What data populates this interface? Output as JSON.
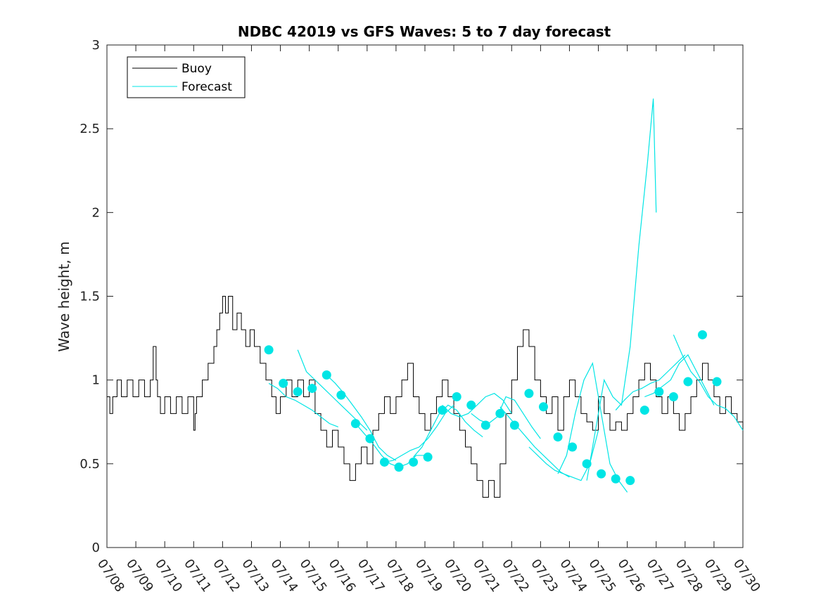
{
  "chart_data": {
    "type": "line",
    "title": "NDBC 42019 vs GFS Waves: 5 to 7 day forecast",
    "xlabel": "",
    "ylabel": "Wave height, m",
    "ylim": [
      0,
      3
    ],
    "yticks": [
      "0",
      "0.5",
      "1",
      "1.5",
      "2",
      "2.5",
      "3"
    ],
    "xticks": [
      "07/08",
      "07/09",
      "07/10",
      "07/11",
      "07/12",
      "07/13",
      "07/14",
      "07/15",
      "07/16",
      "07/17",
      "07/18",
      "07/19",
      "07/20",
      "07/21",
      "07/22",
      "07/23",
      "07/24",
      "07/25",
      "07/26",
      "07/27",
      "07/28",
      "07/29",
      "07/30"
    ],
    "grid": false,
    "legend_placement": "top-left",
    "colors": {
      "buoy": "#000000",
      "forecast": "#00e5e5"
    },
    "series": [
      {
        "name": "Buoy",
        "x": [
          0,
          0.1,
          0.2,
          0.35,
          0.5,
          0.7,
          0.9,
          1.1,
          1.3,
          1.5,
          1.6,
          1.7,
          1.75,
          1.85,
          2.0,
          2.2,
          2.4,
          2.6,
          2.8,
          3.0,
          3.05,
          3.1,
          3.3,
          3.5,
          3.7,
          3.8,
          3.9,
          4.0,
          4.1,
          4.2,
          4.35,
          4.5,
          4.65,
          4.8,
          4.95,
          5.1,
          5.3,
          5.5,
          5.7,
          5.85,
          6.0,
          6.2,
          6.4,
          6.6,
          6.8,
          7.0,
          7.2,
          7.4,
          7.6,
          7.8,
          8.0,
          8.2,
          8.4,
          8.6,
          8.8,
          9.0,
          9.2,
          9.4,
          9.6,
          9.8,
          10.0,
          10.2,
          10.4,
          10.6,
          10.8,
          11.0,
          11.2,
          11.4,
          11.6,
          11.8,
          12.0,
          12.2,
          12.4,
          12.6,
          12.8,
          13.0,
          13.2,
          13.4,
          13.6,
          13.8,
          14.0,
          14.2,
          14.4,
          14.6,
          14.8,
          15.0,
          15.2,
          15.4,
          15.6,
          15.8,
          16.0,
          16.2,
          16.4,
          16.6,
          16.8,
          17.0,
          17.2,
          17.4,
          17.6,
          17.8,
          18.0,
          18.2,
          18.4,
          18.6,
          18.8,
          19.0,
          19.2,
          19.4,
          19.6,
          19.8,
          20.0,
          20.2,
          20.4,
          20.6,
          20.8,
          21.0,
          21.2,
          21.4,
          21.6,
          21.8,
          22.0
        ],
        "values": [
          0.9,
          0.8,
          0.9,
          1.0,
          0.9,
          1.0,
          0.9,
          1.0,
          0.9,
          1.0,
          1.2,
          1.0,
          0.9,
          0.8,
          0.9,
          0.8,
          0.9,
          0.8,
          0.9,
          0.7,
          0.8,
          0.9,
          1.0,
          1.1,
          1.2,
          1.3,
          1.4,
          1.5,
          1.4,
          1.5,
          1.3,
          1.4,
          1.3,
          1.2,
          1.3,
          1.2,
          1.1,
          1.0,
          0.9,
          0.8,
          0.9,
          1.0,
          0.9,
          1.0,
          0.9,
          1.0,
          0.8,
          0.7,
          0.6,
          0.7,
          0.6,
          0.5,
          0.4,
          0.5,
          0.6,
          0.5,
          0.7,
          0.8,
          0.9,
          0.8,
          0.9,
          1.0,
          1.1,
          0.9,
          0.8,
          0.7,
          0.8,
          0.9,
          1.0,
          0.9,
          0.8,
          0.7,
          0.6,
          0.5,
          0.4,
          0.3,
          0.4,
          0.3,
          0.5,
          0.8,
          1.0,
          1.2,
          1.3,
          1.2,
          1.0,
          0.9,
          0.8,
          0.9,
          0.7,
          0.9,
          1.0,
          0.9,
          0.8,
          0.75,
          0.7,
          0.9,
          0.8,
          0.7,
          0.75,
          0.7,
          0.8,
          0.9,
          1.0,
          1.1,
          1.0,
          0.9,
          0.8,
          0.9,
          0.8,
          0.7,
          0.8,
          0.9,
          1.0,
          1.1,
          1.0,
          0.9,
          0.8,
          0.9,
          0.8,
          0.75,
          0.7
        ]
      },
      {
        "name": "Forecast",
        "runs": [
          {
            "x": [
              5.6,
              5.9,
              6.2,
              6.5,
              6.8,
              7.1,
              7.4,
              7.7,
              8.0
            ],
            "values": [
              0.98,
              0.95,
              0.9,
              0.88,
              0.85,
              0.82,
              0.78,
              0.74,
              0.72
            ]
          },
          {
            "x": [
              6.6,
              6.9,
              7.2,
              7.5,
              7.8,
              8.1,
              8.4,
              8.7,
              9.0
            ],
            "values": [
              1.18,
              1.05,
              1.0,
              0.95,
              0.9,
              0.85,
              0.8,
              0.75,
              0.7
            ]
          },
          {
            "x": [
              7.6,
              7.9,
              8.2,
              8.5,
              8.8,
              9.1,
              9.4,
              9.7,
              10.0
            ],
            "values": [
              1.03,
              0.98,
              0.92,
              0.85,
              0.78,
              0.7,
              0.6,
              0.55,
              0.52
            ]
          },
          {
            "x": [
              8.6,
              8.9,
              9.2,
              9.5,
              9.8,
              10.1,
              10.4,
              10.7,
              11.0
            ],
            "values": [
              0.74,
              0.68,
              0.62,
              0.55,
              0.5,
              0.48,
              0.5,
              0.55,
              0.55
            ]
          },
          {
            "x": [
              9.6,
              9.9,
              10.2,
              10.5,
              10.8,
              11.1,
              11.4,
              11.7,
              12.0
            ],
            "values": [
              0.51,
              0.52,
              0.55,
              0.58,
              0.6,
              0.65,
              0.72,
              0.8,
              0.85
            ]
          },
          {
            "x": [
              10.6,
              10.9,
              11.2,
              11.5,
              11.8,
              12.1,
              12.4,
              12.7,
              13.0
            ],
            "values": [
              0.54,
              0.6,
              0.7,
              0.8,
              0.85,
              0.82,
              0.75,
              0.7,
              0.66
            ]
          },
          {
            "x": [
              11.6,
              11.9,
              12.2,
              12.5,
              12.8,
              13.1,
              13.4,
              13.7,
              14.0
            ],
            "values": [
              0.85,
              0.8,
              0.78,
              0.8,
              0.85,
              0.9,
              0.92,
              0.88,
              0.8
            ]
          },
          {
            "x": [
              12.6,
              12.9,
              13.2,
              13.5,
              13.8,
              14.1,
              14.4,
              14.7,
              15.0
            ],
            "values": [
              0.8,
              0.76,
              0.74,
              0.78,
              0.9,
              0.88,
              0.8,
              0.72,
              0.65
            ]
          },
          {
            "x": [
              13.6,
              13.9,
              14.2,
              14.5,
              14.8,
              15.1,
              15.4,
              15.7,
              16.0
            ],
            "values": [
              0.84,
              0.78,
              0.72,
              0.66,
              0.6,
              0.55,
              0.5,
              0.45,
              0.42
            ]
          },
          {
            "x": [
              14.6,
              14.9,
              15.2,
              15.5,
              15.8,
              16.1,
              16.4,
              16.7,
              17.0
            ],
            "values": [
              0.6,
              0.55,
              0.5,
              0.46,
              0.44,
              0.42,
              0.4,
              0.5,
              0.7
            ]
          },
          {
            "x": [
              15.6,
              15.9,
              16.2,
              16.5,
              16.8,
              17.1,
              17.4,
              17.7,
              18.0
            ],
            "values": [
              0.44,
              0.55,
              0.8,
              1.0,
              1.1,
              0.8,
              0.5,
              0.4,
              0.33
            ]
          },
          {
            "x": [
              16.6,
              16.9,
              17.2,
              17.5,
              17.8,
              18.1,
              18.4,
              18.7,
              18.9,
              19.0
            ],
            "values": [
              0.4,
              0.7,
              1.0,
              0.9,
              0.85,
              1.2,
              1.8,
              2.3,
              2.68,
              2.0
            ]
          },
          {
            "x": [
              17.6,
              17.9,
              18.2,
              18.5,
              18.8,
              19.1,
              19.4,
              19.7,
              20.0
            ],
            "values": [
              0.82,
              0.88,
              0.93,
              0.95,
              0.98,
              1.0,
              1.05,
              1.1,
              1.15
            ]
          },
          {
            "x": [
              18.6,
              18.9,
              19.2,
              19.5,
              19.8,
              20.1,
              20.4,
              20.7,
              21.0
            ],
            "values": [
              0.9,
              0.92,
              0.96,
              1.0,
              1.1,
              1.15,
              1.05,
              0.95,
              0.85
            ]
          },
          {
            "x": [
              19.6,
              19.9,
              20.2,
              20.5,
              20.8,
              21.1,
              21.4,
              21.7,
              22.0
            ],
            "values": [
              1.27,
              1.15,
              1.05,
              0.99,
              0.9,
              0.85,
              0.83,
              0.78,
              0.7
            ]
          }
        ],
        "markers": {
          "x": [
            5.6,
            6.1,
            6.6,
            7.1,
            7.6,
            8.1,
            8.6,
            9.1,
            9.6,
            10.1,
            10.6,
            11.1,
            11.6,
            12.1,
            12.6,
            13.1,
            13.6,
            14.1,
            14.6,
            15.1,
            15.6,
            16.1,
            16.6,
            17.1,
            17.6,
            18.1,
            18.6,
            19.1,
            19.6,
            20.1,
            20.6,
            21.1
          ],
          "values": [
            1.18,
            0.98,
            0.93,
            0.95,
            1.03,
            0.91,
            0.74,
            0.65,
            0.51,
            0.48,
            0.51,
            0.54,
            0.82,
            0.9,
            0.85,
            0.73,
            0.8,
            0.73,
            0.92,
            0.84,
            0.66,
            0.6,
            0.5,
            0.44,
            0.41,
            0.4,
            0.82,
            0.93,
            0.9,
            0.99,
            1.27,
            0.99
          ]
        }
      }
    ],
    "legend": [
      "Buoy",
      "Forecast"
    ]
  }
}
